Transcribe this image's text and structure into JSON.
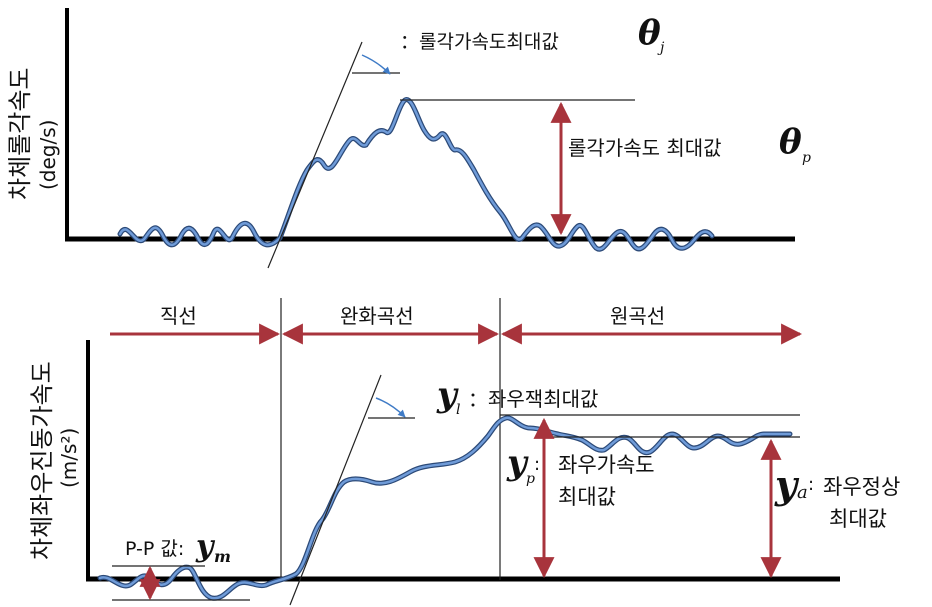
{
  "colors": {
    "curve": "#4f7fc4",
    "curve_outline": "#2c4a78",
    "arrow": "#a8343c",
    "slope_arrow": "#3f7bc6",
    "axis": "#000000"
  },
  "top_panel": {
    "y_axis_label": "차체롤각속도",
    "y_axis_unit": "(deg/s)",
    "slope_label": "：롤각가속도최대값",
    "slope_symbol": "θ",
    "slope_subscript": "j",
    "peak_label": "롤각가속도 최대값",
    "peak_symbol": "θ",
    "peak_subscript": "p"
  },
  "bottom_panel": {
    "y_axis_label": "차체좌우진동가속도",
    "y_axis_unit": "(m/s²)",
    "segments": [
      "직선",
      "완화곡선",
      "원곡선"
    ],
    "jerk_symbol": "y",
    "jerk_subscript": "l",
    "jerk_label": "：좌우잭최대값",
    "peak_symbol": "y",
    "peak_subscript": "p",
    "peak_label_line1": "좌우가속도",
    "peak_label_line2": "최대값",
    "steady_symbol": "y",
    "steady_subscript": "a",
    "steady_label_line1": "좌우정상",
    "steady_label_line2": "최대값",
    "pp_label": "P-P 값:",
    "pp_symbol": "y",
    "pp_subscript": "m"
  }
}
